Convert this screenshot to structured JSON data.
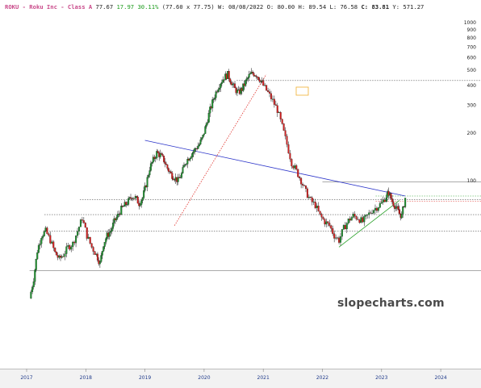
{
  "header": {
    "symbol": "ROKU - Roku Inc - Class A",
    "last": "77.67",
    "change": "17.97 30.11%",
    "range": "(77.60 x 77.75)",
    "week_label": "W:",
    "date": "08/08/2022",
    "open_label": "O:",
    "open": "80.00",
    "high_label": "H:",
    "high": "89.54",
    "low_label": "L:",
    "low": "76.58",
    "close_label": "C:",
    "close": "83.81",
    "y_label": "Y:",
    "y": "571.27"
  },
  "watermark": "slopecharts.com",
  "colors": {
    "up_bar": "#1f8f2f",
    "down_bar": "#d21f1f",
    "trend_blue": "#2a33c9",
    "trend_red_dotted": "#e0302a",
    "trend_green": "#27a027",
    "level_line": "#555555",
    "axis_band": "#f2f2f2"
  },
  "chart_data": {
    "type": "candlestick",
    "scale": "log",
    "ylim": [
      15,
      1000
    ],
    "y_ticks": [
      "1000",
      "900",
      "800",
      "700",
      "600",
      "500",
      "400",
      "300",
      "200",
      "100"
    ],
    "x_ticks": [
      "2017",
      "2018",
      "2019",
      "2020",
      "2021",
      "2022",
      "2023",
      "2024"
    ],
    "xlim": [
      2016.9,
      2024.6
    ],
    "grid": false,
    "price_path": [
      [
        2017.05,
        18
      ],
      [
        2017.12,
        24
      ],
      [
        2017.18,
        36
      ],
      [
        2017.25,
        45
      ],
      [
        2017.32,
        48
      ],
      [
        2017.4,
        42
      ],
      [
        2017.48,
        35
      ],
      [
        2017.55,
        32
      ],
      [
        2017.62,
        34
      ],
      [
        2017.7,
        38
      ],
      [
        2017.78,
        40
      ],
      [
        2017.86,
        48
      ],
      [
        2017.94,
        58
      ],
      [
        2018.02,
        45
      ],
      [
        2018.1,
        38
      ],
      [
        2018.18,
        34
      ],
      [
        2018.24,
        30
      ],
      [
        2018.3,
        40
      ],
      [
        2018.36,
        45
      ],
      [
        2018.42,
        48
      ],
      [
        2018.48,
        55
      ],
      [
        2018.54,
        60
      ],
      [
        2018.6,
        66
      ],
      [
        2018.66,
        70
      ],
      [
        2018.72,
        74
      ],
      [
        2018.78,
        80
      ],
      [
        2018.84,
        78
      ],
      [
        2018.9,
        72
      ],
      [
        2018.96,
        78
      ],
      [
        2019.02,
        95
      ],
      [
        2019.08,
        120
      ],
      [
        2019.14,
        135
      ],
      [
        2019.2,
        150
      ],
      [
        2019.26,
        145
      ],
      [
        2019.32,
        135
      ],
      [
        2019.38,
        120
      ],
      [
        2019.44,
        110
      ],
      [
        2019.5,
        105
      ],
      [
        2019.56,
        100
      ],
      [
        2019.62,
        110
      ],
      [
        2019.68,
        130
      ],
      [
        2019.74,
        140
      ],
      [
        2019.8,
        150
      ],
      [
        2019.86,
        160
      ],
      [
        2019.92,
        170
      ],
      [
        2019.98,
        190
      ],
      [
        2020.04,
        230
      ],
      [
        2020.1,
        280
      ],
      [
        2020.16,
        330
      ],
      [
        2020.22,
        380
      ],
      [
        2020.28,
        420
      ],
      [
        2020.34,
        450
      ],
      [
        2020.4,
        470
      ],
      [
        2020.46,
        420
      ],
      [
        2020.52,
        380
      ],
      [
        2020.58,
        360
      ],
      [
        2020.64,
        380
      ],
      [
        2020.7,
        420
      ],
      [
        2020.76,
        460
      ],
      [
        2020.82,
        480
      ],
      [
        2020.88,
        470
      ],
      [
        2020.94,
        440
      ],
      [
        2021.0,
        400
      ],
      [
        2021.08,
        360
      ],
      [
        2021.16,
        320
      ],
      [
        2021.24,
        280
      ],
      [
        2021.32,
        220
      ],
      [
        2021.4,
        170
      ],
      [
        2021.48,
        130
      ],
      [
        2021.56,
        115
      ],
      [
        2021.64,
        100
      ],
      [
        2021.72,
        85
      ],
      [
        2021.8,
        75
      ],
      [
        2021.88,
        70
      ],
      [
        2021.96,
        60
      ],
      [
        2022.04,
        55
      ],
      [
        2022.12,
        52
      ],
      [
        2022.2,
        45
      ],
      [
        2022.28,
        42
      ],
      [
        2022.36,
        50
      ],
      [
        2022.44,
        56
      ],
      [
        2022.52,
        60
      ],
      [
        2022.6,
        58
      ],
      [
        2022.68,
        55
      ],
      [
        2022.76,
        60
      ],
      [
        2022.84,
        65
      ],
      [
        2022.92,
        68
      ],
      [
        2023.0,
        72
      ],
      [
        2023.08,
        80
      ],
      [
        2023.12,
        84
      ],
      [
        2023.18,
        74
      ],
      [
        2023.24,
        68
      ],
      [
        2023.3,
        62
      ],
      [
        2023.34,
        60
      ],
      [
        2023.4,
        77.67
      ]
    ],
    "horizontal_levels": [
      {
        "value": 430,
        "style": "dotted",
        "x_from": 2020.55
      },
      {
        "value": 98,
        "style": "solid",
        "x_from": 2022.0
      },
      {
        "value": 76,
        "style": "dotted",
        "x_from": 2017.9
      },
      {
        "value": 61,
        "style": "dotted",
        "x_from": 2017.3
      },
      {
        "value": 48,
        "style": "dotted",
        "x_from": 2017.3
      },
      {
        "value": 27,
        "style": "solid",
        "x_from": 2017.05
      },
      {
        "value": 80,
        "style": "dotted-green",
        "x_from": 2022.9
      },
      {
        "value": 74,
        "style": "dotted-red",
        "x_from": 2022.9
      }
    ],
    "trendlines": [
      {
        "color": "trend_blue",
        "from": [
          2019.0,
          180
        ],
        "to": [
          2023.4,
          80
        ]
      },
      {
        "color": "trend_red_dotted",
        "from": [
          2019.5,
          52
        ],
        "to": [
          2021.05,
          470
        ]
      },
      {
        "color": "trend_green",
        "from": [
          2022.28,
          38
        ],
        "to": [
          2023.3,
          75
        ]
      }
    ]
  }
}
